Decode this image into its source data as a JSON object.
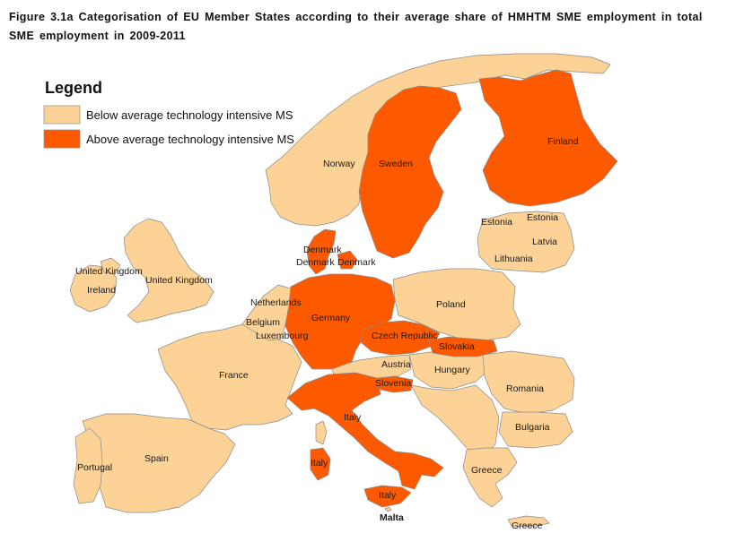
{
  "title": "Figure 3.1a Categorisation of EU Member States according to their average share of HMHTM SME employment in total SME employment in 2009-2011",
  "colors": {
    "below": "#fcd296",
    "above": "#fd5a00",
    "border": "#8a8a8a"
  },
  "legend": {
    "title": "Legend",
    "below_label": "Below average technology intensive MS",
    "above_label": "Above average technology intensive MS"
  },
  "map_data": {
    "categories": {
      "below": [
        "Norway",
        "Estonia",
        "Latvia",
        "Lithuania",
        "Poland",
        "United Kingdom",
        "Ireland",
        "Netherlands",
        "Belgium",
        "Luxembourg",
        "France",
        "Spain",
        "Portugal",
        "Austria",
        "Hungary",
        "Romania",
        "Bulgaria",
        "Greece",
        "Malta"
      ],
      "above": [
        "Sweden",
        "Finland",
        "Denmark",
        "Germany",
        "Czech Republic",
        "Slovakia",
        "Slovenia",
        "Italy"
      ]
    },
    "labels": {
      "norway": "Norway",
      "sweden": "Sweden",
      "finland": "Finland",
      "estonia_1": "Estonia",
      "estonia_2": "Estonia",
      "latvia": "Latvia",
      "lithuania": "Lithuania",
      "denmark_1": "Denmark",
      "denmark_2": "Denmark",
      "denmark_3": "Denmark",
      "uk_1": "United Kingdom",
      "uk_2": "United Kingdom",
      "ireland": "Ireland",
      "netherlands": "Netherlands",
      "belgium": "Belgium",
      "luxembourg": "Luxembourg",
      "germany": "Germany",
      "poland": "Poland",
      "czech": "Czech Republic",
      "slovakia": "Slovakia",
      "austria": "Austria",
      "hungary": "Hungary",
      "slovenia": "Slovenia",
      "france": "France",
      "romania": "Romania",
      "italy_1": "Italy",
      "italy_2": "Italy",
      "italy_3": "Italy",
      "bulgaria": "Bulgaria",
      "spain": "Spain",
      "portugal": "Portugal",
      "greece_1": "Greece",
      "greece_2": "Greece",
      "malta": "Malta"
    }
  }
}
